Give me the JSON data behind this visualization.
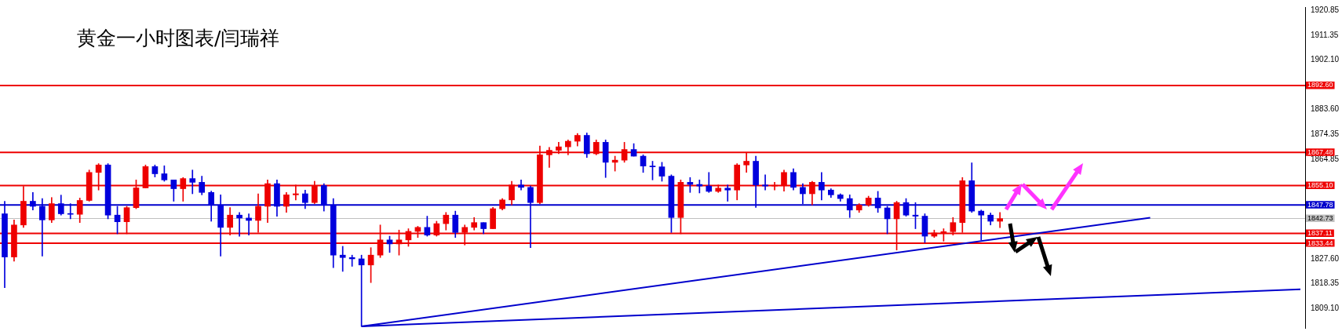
{
  "chart_data": {
    "type": "candlestick",
    "title": "黄金一小时图表/闫瑞祥",
    "categories": [
      null,
      null,
      null,
      null,
      null,
      null,
      null,
      null,
      null,
      null,
      null,
      null,
      null,
      null,
      null,
      null,
      null,
      null,
      null,
      null,
      null,
      null,
      null,
      null,
      null,
      null,
      null,
      null,
      null,
      null,
      null,
      null,
      null,
      null,
      null,
      null,
      null,
      null,
      null,
      null,
      null,
      null,
      null,
      null,
      null,
      null,
      null,
      null,
      null,
      null,
      null,
      null,
      null,
      null,
      null,
      null,
      null,
      null,
      null,
      null,
      null,
      null,
      null,
      null,
      null,
      null,
      null,
      null,
      null,
      null,
      null,
      null,
      null,
      null,
      null,
      null,
      null,
      null,
      null,
      null,
      null,
      null,
      null,
      null,
      null,
      null,
      null,
      null,
      null,
      null,
      null,
      null,
      null,
      null,
      null,
      null,
      null,
      null,
      null,
      null,
      null,
      null,
      null,
      null,
      null,
      null,
      null,
      null,
      null,
      null,
      null,
      null,
      null,
      null,
      null,
      null,
      null,
      null,
      null,
      null,
      null,
      null,
      null,
      null,
      null,
      null,
      null,
      null,
      null,
      null,
      null,
      null,
      null,
      null,
      null,
      null,
      null,
      null,
      null
    ],
    "ohlc": [
      [
        1844.5,
        1849.2,
        1816.8,
        1828.3
      ],
      [
        1828.3,
        1842.2,
        1826.7,
        1840.3
      ],
      [
        1840.3,
        1854.8,
        1839.4,
        1849.2
      ],
      [
        1849.2,
        1852.5,
        1845.9,
        1847.3
      ],
      [
        1847.3,
        1850.2,
        1828.6,
        1842.2
      ],
      [
        1842.2,
        1850.6,
        1841.2,
        1848.3
      ],
      [
        1848.3,
        1851.5,
        1844.0,
        1844.5
      ],
      [
        1844.5,
        1848.3,
        1842.6,
        1844.3
      ],
      [
        1844.3,
        1850.4,
        1841.2,
        1849.5
      ],
      [
        1849.5,
        1860.9,
        1849.2,
        1860.0
      ],
      [
        1860.0,
        1863.3,
        1853.4,
        1862.8
      ],
      [
        1862.8,
        1863.3,
        1842.6,
        1844.0
      ],
      [
        1844.0,
        1847.3,
        1837.0,
        1841.5
      ],
      [
        1841.5,
        1847.3,
        1837.0,
        1846.8
      ],
      [
        1846.8,
        1857.2,
        1846.4,
        1854.2
      ],
      [
        1854.2,
        1862.8,
        1854.2,
        1862.2
      ],
      [
        1862.2,
        1862.8,
        1858.3,
        1859.5
      ],
      [
        1859.5,
        1862.5,
        1856.7,
        1857.2
      ],
      [
        1857.2,
        1857.2,
        1849.2,
        1853.9
      ],
      [
        1853.9,
        1858.1,
        1849.2,
        1857.7
      ],
      [
        1857.7,
        1860.9,
        1852.0,
        1856.3
      ],
      [
        1856.3,
        1858.6,
        1851.6,
        1852.5
      ],
      [
        1852.5,
        1853.0,
        1841.7,
        1847.8
      ],
      [
        1847.8,
        1851.6,
        1828.6,
        1839.4
      ],
      [
        1839.4,
        1846.8,
        1836.5,
        1844.0
      ],
      [
        1844.0,
        1845.0,
        1836.1,
        1842.9
      ],
      [
        1842.9,
        1844.5,
        1836.5,
        1842.0
      ],
      [
        1842.0,
        1852.0,
        1837.5,
        1847.3
      ],
      [
        1847.3,
        1857.2,
        1841.2,
        1855.8
      ],
      [
        1855.8,
        1857.2,
        1843.6,
        1847.3
      ],
      [
        1847.3,
        1852.5,
        1845.0,
        1851.6
      ],
      [
        1851.6,
        1855.3,
        1849.7,
        1852.0
      ],
      [
        1852.0,
        1853.4,
        1846.4,
        1848.7
      ],
      [
        1848.7,
        1856.7,
        1848.3,
        1855.1
      ],
      [
        1855.1,
        1855.8,
        1845.5,
        1847.8
      ],
      [
        1847.8,
        1850.2,
        1824.3,
        1829.0
      ],
      [
        1829.0,
        1832.3,
        1822.9,
        1828.1
      ],
      [
        1828.1,
        1829.0,
        1824.8,
        1827.6
      ],
      [
        1827.6,
        1829.0,
        1802.3,
        1825.3
      ],
      [
        1825.3,
        1831.8,
        1818.7,
        1829.0
      ],
      [
        1829.0,
        1840.3,
        1828.1,
        1834.7
      ],
      [
        1834.7,
        1836.1,
        1830.0,
        1833.2
      ],
      [
        1833.2,
        1838.4,
        1829.0,
        1834.7
      ],
      [
        1834.7,
        1838.9,
        1832.3,
        1837.9
      ],
      [
        1837.9,
        1839.8,
        1835.6,
        1839.4
      ],
      [
        1839.4,
        1843.6,
        1836.1,
        1836.5
      ],
      [
        1836.5,
        1841.7,
        1836.1,
        1840.8
      ],
      [
        1840.8,
        1845.0,
        1838.4,
        1844.0
      ],
      [
        1844.0,
        1845.5,
        1835.6,
        1837.5
      ],
      [
        1837.5,
        1840.3,
        1832.8,
        1839.4
      ],
      [
        1839.4,
        1843.1,
        1838.4,
        1841.2
      ],
      [
        1841.2,
        1841.2,
        1837.0,
        1838.9
      ],
      [
        1838.9,
        1846.9,
        1838.9,
        1846.4
      ],
      [
        1846.4,
        1850.2,
        1845.9,
        1849.7
      ],
      [
        1849.7,
        1856.7,
        1847.8,
        1855.3
      ],
      [
        1855.3,
        1857.2,
        1853.4,
        1854.4
      ],
      [
        1854.4,
        1854.9,
        1831.8,
        1848.7
      ],
      [
        1848.7,
        1869.9,
        1848.3,
        1866.6
      ],
      [
        1866.6,
        1869.4,
        1861.9,
        1868.3
      ],
      [
        1868.3,
        1871.3,
        1867.0,
        1869.6
      ],
      [
        1869.6,
        1872.2,
        1866.6,
        1871.7
      ],
      [
        1871.7,
        1874.6,
        1869.9,
        1873.9
      ],
      [
        1873.9,
        1874.8,
        1865.6,
        1867.0
      ],
      [
        1867.0,
        1872.2,
        1866.6,
        1871.3
      ],
      [
        1871.3,
        1872.2,
        1858.1,
        1863.8
      ],
      [
        1863.8,
        1866.1,
        1860.5,
        1864.6
      ],
      [
        1864.6,
        1871.3,
        1863.8,
        1868.6
      ],
      [
        1868.6,
        1870.8,
        1866.1,
        1866.1
      ],
      [
        1866.1,
        1866.6,
        1860.0,
        1862.4
      ],
      [
        1862.4,
        1864.2,
        1857.2,
        1862.1
      ],
      [
        1862.1,
        1863.8,
        1856.7,
        1858.6
      ],
      [
        1858.6,
        1859.1,
        1837.5,
        1843.1
      ],
      [
        1843.1,
        1857.2,
        1837.0,
        1856.3
      ],
      [
        1856.3,
        1858.1,
        1852.5,
        1855.5
      ],
      [
        1855.5,
        1857.2,
        1852.3,
        1854.9
      ],
      [
        1854.9,
        1860.0,
        1852.5,
        1852.9
      ],
      [
        1852.9,
        1855.3,
        1852.5,
        1854.1
      ],
      [
        1854.1,
        1855.3,
        1849.2,
        1853.4
      ],
      [
        1853.4,
        1863.3,
        1849.7,
        1862.8
      ],
      [
        1862.8,
        1867.5,
        1860.0,
        1864.2
      ],
      [
        1864.2,
        1866.1,
        1846.9,
        1855.3
      ],
      [
        1855.3,
        1859.1,
        1853.4,
        1854.9
      ],
      [
        1854.9,
        1856.3,
        1853.4,
        1855.0
      ],
      [
        1855.0,
        1860.9,
        1853.0,
        1860.0
      ],
      [
        1860.0,
        1861.4,
        1853.4,
        1854.4
      ],
      [
        1854.4,
        1855.8,
        1848.3,
        1852.0
      ],
      [
        1852.0,
        1856.7,
        1847.8,
        1856.3
      ],
      [
        1856.3,
        1860.0,
        1849.7,
        1853.4
      ],
      [
        1853.4,
        1853.9,
        1850.6,
        1851.6
      ],
      [
        1851.6,
        1852.0,
        1849.2,
        1850.2
      ],
      [
        1850.2,
        1851.6,
        1843.1,
        1845.9
      ],
      [
        1845.9,
        1848.3,
        1845.0,
        1847.8
      ],
      [
        1847.8,
        1851.1,
        1847.3,
        1850.4
      ],
      [
        1850.4,
        1852.9,
        1845.0,
        1846.7
      ],
      [
        1846.7,
        1847.3,
        1837.0,
        1842.6
      ],
      [
        1842.6,
        1849.2,
        1830.9,
        1848.7
      ],
      [
        1848.7,
        1850.2,
        1843.6,
        1844.0
      ],
      [
        1844.0,
        1848.7,
        1838.9,
        1843.6
      ],
      [
        1843.6,
        1844.5,
        1833.7,
        1836.1
      ],
      [
        1836.1,
        1838.4,
        1835.6,
        1837.3
      ],
      [
        1837.3,
        1838.9,
        1834.2,
        1837.8
      ],
      [
        1837.8,
        1843.1,
        1836.5,
        1841.2
      ],
      [
        1841.2,
        1858.1,
        1837.5,
        1856.9
      ],
      [
        1856.9,
        1863.6,
        1845.0,
        1845.5
      ],
      [
        1845.5,
        1845.9,
        1834.7,
        1844.0
      ],
      [
        1844.0,
        1844.8,
        1840.3,
        1841.7
      ],
      [
        1841.7,
        1845.0,
        1839.3,
        1842.7
      ],
      null,
      null,
      null,
      null,
      null,
      null,
      null,
      null,
      null,
      null,
      null,
      null,
      null,
      null,
      null,
      null,
      null,
      null,
      null,
      null,
      null,
      null,
      null,
      null,
      null,
      null,
      null,
      null,
      null,
      null,
      null,
      null
    ],
    "colors": [
      "#0000dd",
      "#ee0000",
      "#ee0000",
      "#0000dd",
      "#0000dd",
      "#ee0000",
      "#0000dd",
      "#0000dd",
      "#ee0000",
      "#ee0000",
      "#ee0000",
      "#0000dd",
      "#0000dd",
      "#ee0000",
      "#ee0000",
      "#ee0000",
      "#0000dd",
      "#0000dd",
      "#0000dd",
      "#ee0000",
      "#0000dd",
      "#0000dd",
      "#0000dd",
      "#0000dd",
      "#ee0000",
      "#0000dd",
      "#0000dd",
      "#ee0000",
      "#ee0000",
      "#0000dd",
      "#ee0000",
      "#ee0000",
      "#0000dd",
      "#ee0000",
      "#0000dd",
      "#0000dd",
      "#0000dd",
      "#0000dd",
      "#0000dd",
      "#ee0000",
      "#ee0000",
      "#0000dd",
      "#ee0000",
      "#ee0000",
      "#ee0000",
      "#0000dd",
      "#ee0000",
      "#ee0000",
      "#0000dd",
      "#ee0000",
      "#ee0000",
      "#0000dd",
      "#ee0000",
      "#ee0000",
      "#ee0000",
      "#0000dd",
      "#0000dd",
      "#ee0000",
      "#ee0000",
      "#ee0000",
      "#ee0000",
      "#ee0000",
      "#0000dd",
      "#ee0000",
      "#0000dd",
      "#ee0000",
      "#ee0000",
      "#0000dd",
      "#0000dd",
      "#0000dd",
      "#0000dd",
      "#0000dd",
      "#ee0000",
      "#0000dd",
      "#0000dd",
      "#0000dd",
      "#ee0000",
      "#0000dd",
      "#ee0000",
      "#ee0000",
      "#0000dd",
      "#0000dd",
      "#ee0000",
      "#ee0000",
      "#0000dd",
      "#0000dd",
      "#ee0000",
      "#0000dd",
      "#0000dd",
      "#0000dd",
      "#0000dd",
      "#ee0000",
      "#ee0000",
      "#0000dd",
      "#0000dd",
      "#ee0000",
      "#0000dd",
      "#0000dd",
      "#0000dd",
      "#ee0000",
      "#ee0000",
      "#ee0000",
      "#ee0000",
      "#0000dd",
      "#0000dd",
      "#0000dd",
      "#ee0000",
      null,
      null,
      null,
      null,
      null,
      null,
      null,
      null,
      null,
      null,
      null,
      null,
      null,
      null,
      null,
      null,
      null,
      null,
      null,
      null,
      null,
      null,
      null,
      null,
      null,
      null,
      null,
      null,
      null,
      null,
      null,
      null
    ],
    "series": [
      {
        "type": "line",
        "values": [
          null,
          null,
          null,
          null,
          null,
          null,
          null,
          null,
          null,
          null,
          null,
          null,
          null,
          null,
          null,
          null,
          null,
          null,
          null,
          null,
          null,
          null,
          null,
          null,
          null,
          null,
          null,
          null,
          null,
          null,
          null,
          null,
          null,
          null,
          null,
          null,
          null,
          null,
          1802.3,
          null,
          null,
          null,
          null,
          null,
          null,
          null,
          null,
          null,
          null,
          null,
          null,
          null,
          null,
          null,
          null,
          null,
          null,
          null,
          null,
          null,
          null,
          null,
          null,
          null,
          null,
          null,
          null,
          null,
          null,
          null,
          null,
          null,
          null,
          null,
          null,
          null,
          null,
          null,
          null,
          null,
          null,
          null,
          null,
          null,
          null,
          null,
          null,
          null,
          null,
          null,
          null,
          null,
          null,
          null,
          null,
          null,
          null,
          null,
          null,
          null,
          null,
          null,
          null,
          null,
          null,
          null,
          null,
          null,
          null,
          null,
          null,
          null,
          null,
          null,
          null,
          null,
          null,
          null,
          null,
          null,
          null,
          null,
          1843.0,
          null,
          null,
          null,
          null,
          null,
          null,
          null,
          null,
          null,
          null,
          null,
          null,
          null,
          null,
          null,
          null
        ],
        "color": "#0000cc"
      },
      {
        "type": "line",
        "values": [
          null,
          null,
          null,
          null,
          null,
          null,
          null,
          null,
          null,
          null,
          null,
          null,
          null,
          null,
          null,
          null,
          null,
          null,
          null,
          null,
          null,
          null,
          null,
          null,
          null,
          null,
          null,
          null,
          null,
          null,
          null,
          null,
          null,
          null,
          null,
          null,
          null,
          null,
          1802.3,
          null,
          null,
          null,
          null,
          null,
          null,
          null,
          null,
          null,
          null,
          null,
          null,
          null,
          null,
          null,
          null,
          null,
          null,
          null,
          null,
          null,
          null,
          null,
          null,
          null,
          null,
          null,
          null,
          null,
          null,
          null,
          null,
          null,
          null,
          null,
          null,
          null,
          null,
          null,
          null,
          null,
          null,
          null,
          null,
          null,
          null,
          null,
          null,
          null,
          null,
          null,
          null,
          null,
          null,
          null,
          null,
          null,
          null,
          null,
          null,
          null,
          null,
          null,
          null,
          null,
          null,
          null,
          null,
          null,
          null,
          null,
          null,
          null,
          null,
          null,
          null,
          null,
          null,
          null,
          null,
          null,
          null,
          null,
          null,
          null,
          null,
          null,
          null,
          null,
          null,
          null,
          null,
          null,
          null,
          null,
          null,
          null,
          null,
          null,
          1816.2
        ],
        "color": "#0000cc"
      }
    ],
    "ref_lines": [
      {
        "axis": "y",
        "value": 1892.6,
        "label": "1892.60",
        "color": "#ee0000"
      },
      {
        "axis": "y",
        "value": 1867.48,
        "label": "1867.48",
        "color": "#ee0000"
      },
      {
        "axis": "y",
        "value": 1855.1,
        "label": "1855.10",
        "color": "#ee0000"
      },
      {
        "axis": "y",
        "value": 1847.78,
        "label": "1847.78",
        "color": "#0000cc"
      },
      {
        "axis": "y",
        "value": 1842.73,
        "label": "1842.73",
        "color": "#c0c0c0"
      },
      {
        "axis": "y",
        "value": 1837.11,
        "label": "1837.11",
        "color": "#ee0000"
      },
      {
        "axis": "y",
        "value": 1833.44,
        "label": "1833.44",
        "color": "#ee0000"
      }
    ],
    "ylim": [
      1801.7,
      1922.0
    ],
    "yticks": [
      {
        "value": 1920.85,
        "label": "1920.85"
      },
      {
        "value": 1911.35,
        "label": "1911.35"
      },
      {
        "value": 1902.1,
        "label": "1902.10"
      },
      {
        "value": 1883.6,
        "label": "1883.60"
      },
      {
        "value": 1874.35,
        "label": "1874.35"
      },
      {
        "value": 1864.85,
        "label": "1864.85"
      },
      {
        "value": 1827.6,
        "label": "1827.60"
      },
      {
        "value": 1818.35,
        "label": "1818.35"
      },
      {
        "value": 1809.1,
        "label": "1809.10"
      }
    ],
    "tick_labels": "y",
    "grid": false,
    "legend": false
  }
}
